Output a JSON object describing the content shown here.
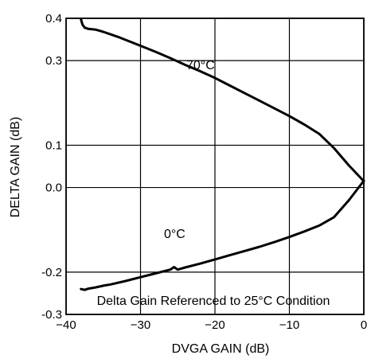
{
  "chart_data": {
    "type": "line",
    "title": "",
    "xlabel": "DVGA GAIN (dB)",
    "ylabel": "DELTA GAIN (dB)",
    "xlim": [
      -40,
      0
    ],
    "ylim": [
      -0.3,
      0.4
    ],
    "x_ticks": [
      -40,
      -30,
      -20,
      -10,
      0
    ],
    "x_tick_labels": [
      "−40",
      "−30",
      "−20",
      "−10",
      "0"
    ],
    "y_ticks": [
      -0.3,
      -0.2,
      0.0,
      0.1,
      0.3,
      0.4
    ],
    "y_tick_labels": [
      "-0.3",
      "-0.2",
      "0.0",
      "0.1",
      "0.3",
      "0.4"
    ],
    "grid": true,
    "series": [
      {
        "name": "70°C",
        "x": [
          -38,
          -37.8,
          -37.5,
          -37,
          -36,
          -35,
          -34,
          -33,
          -32,
          -30,
          -28,
          -26,
          -24,
          -22,
          -20,
          -18,
          -16,
          -14,
          -12,
          -10,
          -8,
          -6,
          -4,
          -2,
          0
        ],
        "y": [
          0.398,
          0.385,
          0.378,
          0.375,
          0.373,
          0.368,
          0.362,
          0.356,
          0.349,
          0.335,
          0.321,
          0.306,
          0.29,
          0.275,
          0.259,
          0.241,
          0.223,
          0.205,
          0.187,
          0.169,
          0.149,
          0.127,
          0.093,
          0.052,
          0.015
        ]
      },
      {
        "name": "0°C",
        "x": [
          -38,
          -37.5,
          -37,
          -36,
          -35,
          -34,
          -32,
          -30,
          -28,
          -26,
          -25.5,
          -25,
          -24,
          -22,
          -20,
          -18,
          -16,
          -14,
          -12,
          -10,
          -8,
          -6,
          -4,
          -2,
          0
        ],
        "y": [
          -0.24,
          -0.242,
          -0.239,
          -0.236,
          -0.232,
          -0.229,
          -0.221,
          -0.212,
          -0.203,
          -0.194,
          -0.188,
          -0.194,
          -0.189,
          -0.18,
          -0.17,
          -0.16,
          -0.15,
          -0.14,
          -0.129,
          -0.117,
          -0.104,
          -0.09,
          -0.07,
          -0.03,
          0.016
        ]
      }
    ],
    "annotations": {
      "hot_label": "70°C",
      "cold_label": "0°C",
      "reference_note": "Delta Gain Referenced to 25°C Condition"
    }
  }
}
